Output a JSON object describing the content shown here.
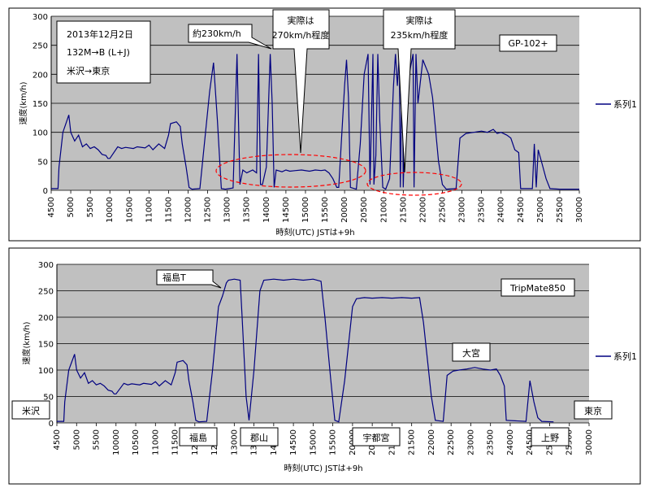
{
  "chart_data": [
    {
      "type": "line",
      "id": "top",
      "device": "GP-102+",
      "info_lines": [
        "2013年12月2日",
        "132M→B (L+J)",
        "米沢→東京"
      ],
      "ylabel": "速度(km/h)",
      "xlabel": "時刻(UTC) JSTは+9h",
      "legend": "系列1",
      "ylim": [
        0,
        300
      ],
      "yticks": [
        0,
        50,
        100,
        150,
        200,
        250,
        300
      ],
      "xticks": [
        "4500",
        "5000",
        "5500",
        "10000",
        "10500",
        "11000",
        "11500",
        "12000",
        "12500",
        "13000",
        "13500",
        "14000",
        "14500",
        "15000",
        "15500",
        "20000",
        "20500",
        "21000",
        "21500",
        "22000",
        "22500",
        "23000",
        "23500",
        "24000",
        "24500",
        "25000",
        "25500",
        "30000"
      ],
      "annotations": [
        {
          "text": "約230km/h",
          "lines": [
            "約230km/h"
          ]
        },
        {
          "text": "実際は270km/h程度",
          "lines": [
            "実際は",
            "270km/h程度"
          ]
        },
        {
          "text": "実際は235km/h程度",
          "lines": [
            "実際は",
            "235km/h程度"
          ]
        }
      ],
      "series": [
        {
          "name": "系列1",
          "points": [
            [
              0,
              3
            ],
            [
              0.35,
              3
            ],
            [
              0.4,
              40
            ],
            [
              0.6,
              100
            ],
            [
              0.8,
              120
            ],
            [
              0.9,
              130
            ],
            [
              1.0,
              100
            ],
            [
              1.2,
              85
            ],
            [
              1.4,
              95
            ],
            [
              1.6,
              75
            ],
            [
              1.8,
              80
            ],
            [
              2.0,
              72
            ],
            [
              2.2,
              75
            ],
            [
              2.4,
              70
            ],
            [
              2.6,
              62
            ],
            [
              2.8,
              60
            ],
            [
              2.9,
              55
            ],
            [
              3.0,
              55
            ],
            [
              3.4,
              75
            ],
            [
              3.6,
              72
            ],
            [
              3.8,
              74
            ],
            [
              4.2,
              72
            ],
            [
              4.4,
              75
            ],
            [
              4.8,
              73
            ],
            [
              5.0,
              78
            ],
            [
              5.2,
              70
            ],
            [
              5.5,
              80
            ],
            [
              5.8,
              72
            ],
            [
              6.0,
              95
            ],
            [
              6.1,
              115
            ],
            [
              6.4,
              118
            ],
            [
              6.6,
              110
            ],
            [
              6.7,
              80
            ],
            [
              6.9,
              40
            ],
            [
              7.05,
              5
            ],
            [
              7.2,
              2
            ],
            [
              7.6,
              3
            ],
            [
              8.1,
              170
            ],
            [
              8.3,
              220
            ],
            [
              8.5,
              120
            ],
            [
              8.7,
              3
            ],
            [
              8.9,
              2
            ],
            [
              9.3,
              4
            ],
            [
              9.5,
              235
            ],
            [
              9.65,
              10
            ],
            [
              9.8,
              35
            ],
            [
              10.0,
              30
            ],
            [
              10.3,
              35
            ],
            [
              10.5,
              30
            ],
            [
              10.6,
              235
            ],
            [
              10.7,
              10
            ],
            [
              10.8,
              10
            ],
            [
              11.0,
              40
            ],
            [
              11.2,
              235
            ],
            [
              11.3,
              150
            ],
            [
              11.4,
              5
            ],
            [
              11.5,
              35
            ],
            [
              11.8,
              32
            ],
            [
              12.0,
              35
            ],
            [
              12.2,
              33
            ],
            [
              12.5,
              34
            ],
            [
              12.8,
              35
            ],
            [
              13.2,
              33
            ],
            [
              13.5,
              35
            ],
            [
              13.8,
              34
            ],
            [
              14.0,
              35
            ],
            [
              14.2,
              30
            ],
            [
              14.4,
              20
            ],
            [
              14.6,
              5
            ],
            [
              14.7,
              5
            ],
            [
              15.0,
              180
            ],
            [
              15.1,
              225
            ],
            [
              15.2,
              160
            ],
            [
              15.3,
              5
            ],
            [
              15.6,
              2
            ],
            [
              15.8,
              80
            ],
            [
              16.0,
              200
            ],
            [
              16.2,
              235
            ],
            [
              16.3,
              10
            ],
            [
              16.45,
              235
            ],
            [
              16.5,
              10
            ],
            [
              16.6,
              60
            ],
            [
              16.7,
              235
            ],
            [
              16.8,
              120
            ],
            [
              16.95,
              5
            ],
            [
              17.1,
              2
            ],
            [
              17.3,
              20
            ],
            [
              17.5,
              180
            ],
            [
              17.6,
              235
            ],
            [
              17.7,
              180
            ],
            [
              17.8,
              235
            ],
            [
              17.85,
              5
            ],
            [
              17.95,
              235
            ],
            [
              18.0,
              5
            ],
            [
              18.2,
              235
            ],
            [
              18.3,
              200
            ],
            [
              18.5,
              235
            ],
            [
              18.55,
              5
            ],
            [
              18.65,
              235
            ],
            [
              18.75,
              150
            ],
            [
              19.0,
              225
            ],
            [
              19.3,
              200
            ],
            [
              19.5,
              160
            ],
            [
              19.8,
              50
            ],
            [
              20.0,
              10
            ],
            [
              20.2,
              2
            ],
            [
              20.7,
              3
            ],
            [
              20.9,
              90
            ],
            [
              21.2,
              98
            ],
            [
              21.6,
              100
            ],
            [
              22.0,
              102
            ],
            [
              22.3,
              100
            ],
            [
              22.6,
              105
            ],
            [
              22.8,
              98
            ],
            [
              23.0,
              100
            ],
            [
              23.3,
              95
            ],
            [
              23.5,
              90
            ],
            [
              23.7,
              70
            ],
            [
              23.9,
              65
            ],
            [
              24.0,
              3
            ],
            [
              24.6,
              3
            ],
            [
              24.7,
              80
            ],
            [
              24.8,
              5
            ],
            [
              24.9,
              70
            ],
            [
              25.1,
              45
            ],
            [
              25.3,
              20
            ],
            [
              25.5,
              3
            ],
            [
              26.0,
              2
            ],
            [
              27.0,
              2
            ]
          ]
        }
      ]
    },
    {
      "type": "line",
      "id": "bottom",
      "device": "TripMate850",
      "ylabel": "速度(km/h)",
      "xlabel": "時刻(UTC) JSTは+9h",
      "legend": "系列1",
      "ylim": [
        0,
        300
      ],
      "yticks": [
        0,
        50,
        100,
        150,
        200,
        250,
        300
      ],
      "xticks": [
        "4500",
        "5000",
        "5500",
        "10000",
        "10500",
        "11000",
        "11500",
        "12000",
        "12500",
        "13000",
        "13500",
        "14000",
        "14500",
        "15000",
        "15500",
        "20000",
        "20500",
        "21000",
        "21500",
        "22000",
        "22500",
        "23000",
        "23500",
        "24000",
        "24500",
        "25000",
        "25500",
        "30000"
      ],
      "annotations": [
        {
          "text": "福島T",
          "lines": [
            "福島T"
          ]
        }
      ],
      "stations": [
        "米沢",
        "福島",
        "郡山",
        "宇都宮",
        "大宮",
        "上野",
        "東京"
      ],
      "series": [
        {
          "name": "系列1",
          "points": [
            [
              0,
              3
            ],
            [
              0.35,
              3
            ],
            [
              0.4,
              40
            ],
            [
              0.6,
              100
            ],
            [
              0.8,
              120
            ],
            [
              0.9,
              130
            ],
            [
              1.0,
              100
            ],
            [
              1.2,
              85
            ],
            [
              1.4,
              95
            ],
            [
              1.6,
              75
            ],
            [
              1.8,
              80
            ],
            [
              2.0,
              72
            ],
            [
              2.2,
              75
            ],
            [
              2.4,
              70
            ],
            [
              2.6,
              62
            ],
            [
              2.8,
              60
            ],
            [
              2.9,
              55
            ],
            [
              3.0,
              55
            ],
            [
              3.4,
              75
            ],
            [
              3.6,
              72
            ],
            [
              3.8,
              74
            ],
            [
              4.2,
              72
            ],
            [
              4.4,
              75
            ],
            [
              4.8,
              73
            ],
            [
              5.0,
              78
            ],
            [
              5.2,
              70
            ],
            [
              5.5,
              80
            ],
            [
              5.8,
              72
            ],
            [
              6.0,
              95
            ],
            [
              6.1,
              115
            ],
            [
              6.4,
              118
            ],
            [
              6.6,
              110
            ],
            [
              6.7,
              80
            ],
            [
              6.9,
              40
            ],
            [
              7.05,
              5
            ],
            [
              7.2,
              2
            ],
            [
              7.6,
              3
            ],
            [
              7.9,
              100
            ],
            [
              8.2,
              220
            ],
            [
              8.4,
              240
            ],
            [
              8.6,
              265
            ],
            [
              8.7,
              270
            ],
            [
              9.0,
              272
            ],
            [
              9.3,
              270
            ],
            [
              9.4,
              200
            ],
            [
              9.6,
              50
            ],
            [
              9.75,
              5
            ],
            [
              10.0,
              100
            ],
            [
              10.3,
              250
            ],
            [
              10.5,
              270
            ],
            [
              11.0,
              272
            ],
            [
              11.5,
              270
            ],
            [
              12.0,
              272
            ],
            [
              12.5,
              270
            ],
            [
              13.0,
              272
            ],
            [
              13.4,
              268
            ],
            [
              13.6,
              200
            ],
            [
              13.9,
              80
            ],
            [
              14.1,
              5
            ],
            [
              14.3,
              2
            ],
            [
              14.6,
              80
            ],
            [
              15.0,
              220
            ],
            [
              15.2,
              235
            ],
            [
              15.6,
              237
            ],
            [
              16.0,
              236
            ],
            [
              16.5,
              237
            ],
            [
              17.0,
              236
            ],
            [
              17.5,
              237
            ],
            [
              18.0,
              236
            ],
            [
              18.4,
              237
            ],
            [
              18.6,
              190
            ],
            [
              19.0,
              50
            ],
            [
              19.2,
              5
            ],
            [
              19.6,
              3
            ],
            [
              19.8,
              90
            ],
            [
              20.1,
              98
            ],
            [
              20.4,
              100
            ],
            [
              20.8,
              102
            ],
            [
              21.2,
              105
            ],
            [
              21.6,
              102
            ],
            [
              22.0,
              100
            ],
            [
              22.3,
              102
            ],
            [
              22.5,
              90
            ],
            [
              22.7,
              70
            ],
            [
              22.8,
              5
            ],
            [
              23.8,
              3
            ],
            [
              24.0,
              80
            ],
            [
              24.2,
              40
            ],
            [
              24.4,
              10
            ],
            [
              24.6,
              3
            ],
            [
              25.2,
              2
            ]
          ]
        }
      ]
    }
  ]
}
